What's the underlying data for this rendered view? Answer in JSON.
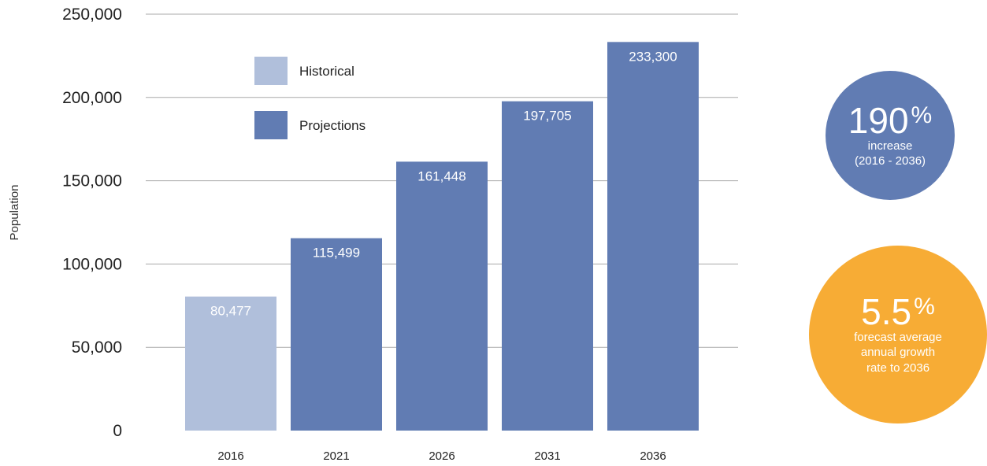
{
  "chart_data": {
    "type": "bar",
    "categories": [
      "2016",
      "2021",
      "2026",
      "2031",
      "2036"
    ],
    "values": [
      80477,
      115499,
      161448,
      197705,
      233300
    ],
    "value_labels": [
      "80,477",
      "115,499",
      "161,448",
      "197,705",
      "233,300"
    ],
    "series_by_bar": [
      "Historical",
      "Projections",
      "Projections",
      "Projections",
      "Projections"
    ],
    "ylabel": "Population",
    "ylim": [
      0,
      250000
    ],
    "yticks": [
      0,
      50000,
      100000,
      150000,
      200000,
      250000
    ],
    "ytick_labels": [
      "0",
      "50,000",
      "100,000",
      "150,000",
      "200,000",
      "250,000"
    ],
    "grid": true,
    "legend": {
      "placement": "top-left",
      "entries": [
        {
          "name": "Historical",
          "color": "#b0bfdb"
        },
        {
          "name": "Projections",
          "color": "#617cb3"
        }
      ]
    }
  },
  "badges": {
    "increase": {
      "value": "190",
      "unit": "%",
      "line1": "increase",
      "line2": "(2016 - 2036)",
      "color": "#617cb3"
    },
    "growth": {
      "value": "5.5",
      "unit": "%",
      "line1": "forecast average",
      "line2": "annual growth",
      "line3": "rate to 2036",
      "color": "#f7ac35"
    }
  }
}
